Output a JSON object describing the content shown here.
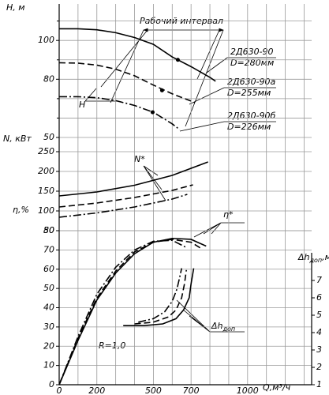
{
  "chart_data": {
    "type": "line",
    "xlabel": "Q,м³/ч",
    "xlim": [
      0,
      1340
    ],
    "xticks": [
      0,
      200,
      500,
      700,
      1000
    ],
    "xminor": [
      100,
      300,
      400,
      600,
      800,
      900,
      1100,
      1200,
      1300
    ],
    "grid": true,
    "axes": {
      "H": {
        "label": "H, м",
        "ylim": [
          50,
          118
        ],
        "yticks": [
          50,
          80,
          100
        ],
        "yminor": [
          60,
          70,
          90,
          110
        ]
      },
      "N": {
        "label": "N, кВт",
        "ylim": [
          50,
          260
        ],
        "yticks": [
          50,
          100,
          150,
          200,
          250
        ]
      },
      "eta": {
        "label": "η,%",
        "ylim": [
          0,
          80
        ],
        "yticks": [
          0,
          10,
          20,
          30,
          40,
          50,
          60,
          70,
          80
        ]
      },
      "dh": {
        "label": "Δh",
        "label_sub": "доп",
        "label_unit": ",м",
        "ylim": [
          1,
          8
        ],
        "yticks": [
          1,
          2,
          3,
          4,
          5,
          6,
          7
        ]
      }
    },
    "series": [
      {
        "axis": "H",
        "style": "solid",
        "x": [
          0,
          100,
          200,
          300,
          400,
          500,
          600,
          700,
          800,
          830
        ],
        "values": [
          106,
          106,
          105.5,
          104,
          101.5,
          98,
          91.5,
          86.5,
          81,
          79
        ]
      },
      {
        "axis": "H",
        "style": "dashed",
        "x": [
          0,
          100,
          200,
          300,
          400,
          500,
          600,
          720
        ],
        "values": [
          88.5,
          88.3,
          87.3,
          85.2,
          81.8,
          77,
          72.5,
          68
        ]
      },
      {
        "axis": "H",
        "style": "dashdot",
        "x": [
          0,
          100,
          200,
          300,
          400,
          500,
          600,
          640
        ],
        "values": [
          71,
          71,
          70.5,
          69,
          66.5,
          63,
          57,
          54
        ]
      },
      {
        "axis": "N",
        "style": "solid",
        "x": [
          0,
          200,
          400,
          600,
          790
        ],
        "values": [
          138,
          148,
          165,
          190,
          224
        ]
      },
      {
        "axis": "N",
        "style": "dashed",
        "x": [
          0,
          200,
          400,
          600,
          710
        ],
        "values": [
          110,
          120,
          134,
          152,
          166
        ]
      },
      {
        "axis": "N",
        "style": "dashdot",
        "x": [
          0,
          200,
          400,
          600,
          680
        ],
        "values": [
          84,
          95,
          110,
          130,
          142
        ]
      },
      {
        "axis": "eta",
        "style": "solid",
        "x": [
          0,
          100,
          200,
          300,
          400,
          500,
          600,
          700,
          780
        ],
        "values": [
          0,
          23,
          44,
          58,
          68,
          74,
          76,
          75.5,
          72
        ]
      },
      {
        "axis": "eta",
        "style": "dashed",
        "x": [
          0,
          100,
          200,
          300,
          400,
          500,
          600,
          700,
          750
        ],
        "values": [
          0,
          24,
          45,
          59,
          69,
          74,
          75.5,
          74,
          71
        ]
      },
      {
        "axis": "eta",
        "style": "dashdot",
        "x": [
          0,
          100,
          200,
          300,
          400,
          500,
          600,
          680
        ],
        "values": [
          0,
          25,
          47,
          61,
          70,
          74.5,
          75,
          71
        ]
      },
      {
        "axis": "dh",
        "style": "solid",
        "x": [
          340,
          450,
          550,
          620,
          660,
          690,
          700,
          714
        ],
        "values": [
          4.4,
          4.4,
          4.5,
          4.8,
          5.3,
          6,
          6.8,
          7.7
        ]
      },
      {
        "axis": "dh",
        "style": "dashed",
        "x": [
          400,
          500,
          580,
          620,
          650,
          665,
          675
        ],
        "values": [
          4.5,
          4.6,
          4.9,
          5.3,
          6,
          6.8,
          7.6
        ]
      },
      {
        "axis": "dh",
        "style": "dashdot",
        "x": [
          420,
          500,
          560,
          600,
          625,
          640,
          650
        ],
        "values": [
          4.6,
          4.8,
          5.2,
          5.8,
          6.5,
          7.2,
          7.7
        ]
      }
    ],
    "points": [
      {
        "axis": "H",
        "x": 630,
        "y": 90
      },
      {
        "axis": "H",
        "x": 546,
        "y": 74.3
      },
      {
        "axis": "H",
        "x": 496,
        "y": 63
      }
    ],
    "annotations": {
      "interval": "Рабочий интервал",
      "pump1": "2Д630-90",
      "d1": "D=280мм",
      "pump2": "2Д630-90а",
      "d2": "D=255мм",
      "pump3": "2Д630-90б",
      "d3": "D=226мм",
      "h": "H",
      "n": "N*",
      "eta": "η*",
      "dh": "Δh",
      "dh_sub": "доп",
      "r": "R=1,0"
    }
  }
}
